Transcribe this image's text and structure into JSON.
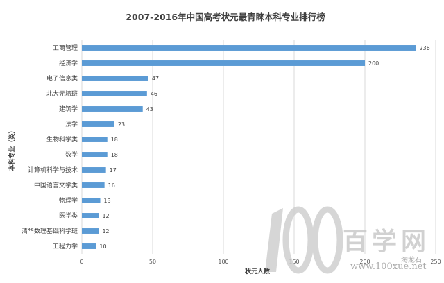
{
  "chart_data": {
    "type": "bar",
    "orientation": "horizontal",
    "title": "2007-2016年中国高考状元最青睐本科专业排行榜",
    "xlabel": "状元人数",
    "ylabel": "本科专业（类）",
    "xlim": [
      0,
      250
    ],
    "xticks": [
      0,
      50,
      100,
      150,
      200,
      250
    ],
    "grid": true,
    "legend": "none",
    "bar_color": "#5b9bd5",
    "categories": [
      "工商管理",
      "经济学",
      "电子信息类",
      "北大元培班",
      "建筑学",
      "法学",
      "生物科学类",
      "数学",
      "计算机科学与技术",
      "中国语言文学类",
      "物理学",
      "医学类",
      "清华数理基础科学班",
      "工程力学"
    ],
    "values": [
      236,
      200,
      47,
      46,
      43,
      23,
      18,
      18,
      17,
      16,
      13,
      12,
      12,
      10
    ]
  },
  "watermark": {
    "logo_number": "100",
    "text": "百学网",
    "url": "www.100xue.net",
    "site": "淘龙石"
  }
}
